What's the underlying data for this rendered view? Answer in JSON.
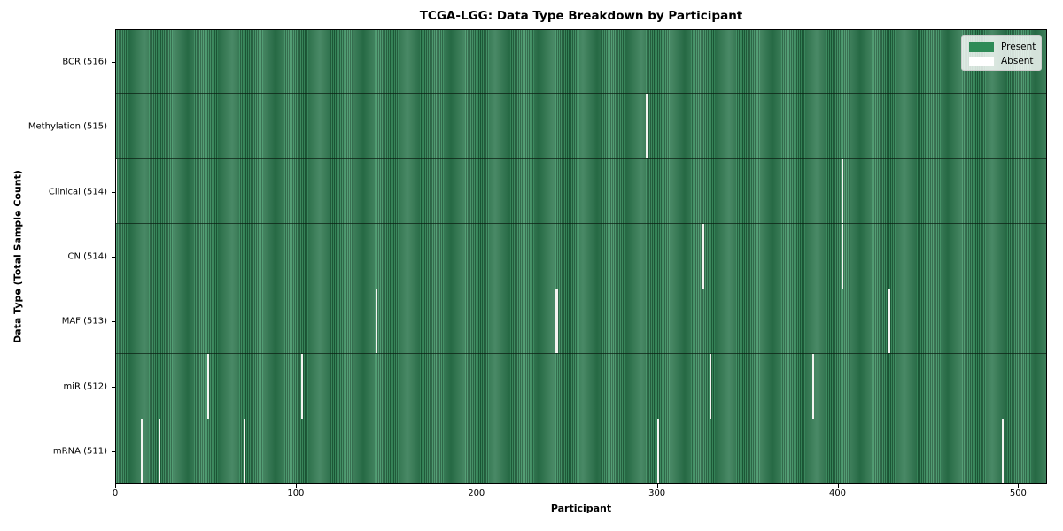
{
  "figure": {
    "title": "TCGA-LGG: Data Type Breakdown by Participant",
    "xlabel": "Participant",
    "ylabel": "Data Type (Total Sample Count)"
  },
  "colors": {
    "present": "#2e8b57",
    "present_stripe_dark": "#1d5c39",
    "present_stripe_light": "#3a9061",
    "absent": "#ffffff",
    "absent_gap": "#f4f4f1",
    "plot_border": "#000000",
    "legend_background": "#e9ece9",
    "background": "#ffffff"
  },
  "chart_data": {
    "type": "heatmap",
    "title": "TCGA-LGG: Data Type Breakdown by Participant",
    "xlabel": "Participant",
    "ylabel": "Data Type (Total Sample Count)",
    "x_range": [
      0,
      516
    ],
    "x_ticks": [
      0,
      100,
      200,
      300,
      400,
      500
    ],
    "x_tick_labels": [
      "0",
      "100",
      "200",
      "300",
      "400",
      "500"
    ],
    "n_participants": 516,
    "grid": false,
    "legend_position": "upper right",
    "legend": [
      {
        "label": "Present",
        "color": "#2e8b57"
      },
      {
        "label": "Absent",
        "color": "#ffffff"
      }
    ],
    "rows": [
      {
        "data_type": "BCR",
        "label": "BCR (516)",
        "present_count": 516,
        "absent_participants": []
      },
      {
        "data_type": "Methylation",
        "label": "Methylation (515)",
        "present_count": 515,
        "absent_participants": [
          294
        ]
      },
      {
        "data_type": "Clinical",
        "label": "Clinical (514)",
        "present_count": 514,
        "absent_participants": [
          0,
          402
        ]
      },
      {
        "data_type": "CN",
        "label": "CN (514)",
        "present_count": 514,
        "absent_participants": [
          325,
          402
        ]
      },
      {
        "data_type": "MAF",
        "label": "MAF (513)",
        "present_count": 513,
        "absent_participants": [
          144,
          244,
          428
        ]
      },
      {
        "data_type": "miR",
        "label": "miR (512)",
        "present_count": 512,
        "absent_participants": [
          51,
          103,
          329,
          386
        ]
      },
      {
        "data_type": "mRNA",
        "label": "mRNA (511)",
        "present_count": 511,
        "absent_participants": [
          14,
          24,
          71,
          300,
          491
        ]
      }
    ]
  }
}
